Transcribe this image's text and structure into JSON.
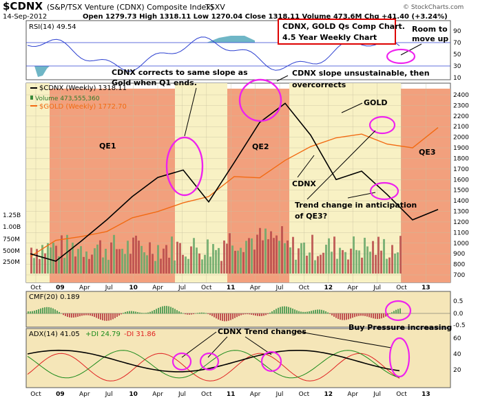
{
  "header": {
    "symbol": "$CDNX",
    "name": "(S&P/TSX Venture (CDNX) Composite Index)",
    "exchange": "TSXV",
    "date": "14-Sep-2012",
    "quote": "Open 1279.73   High 1318.11   Low 1270.04   Close 1318.11   Volume 473.6M   Chg +41.40 (+3.24%)",
    "watermark": "© StockCharts.com"
  },
  "annotations": {
    "title_box_line1": "CDNX, GOLD Qs Comp Chart.",
    "title_box_line2": "4.5 Year Weekly Chart",
    "room_line1": "Room to",
    "room_line2": "move up",
    "corrects_line1": "CDNX corrects to same slope as",
    "corrects_line2": "Gold when Q1 ends.",
    "unsustainable_line1": "CDNX slope unsustainable, then",
    "unsustainable_line2": "overcorrects",
    "gold": "GOLD",
    "cdnx": "CDNX",
    "trend_line1": "Trend change in anticipation",
    "trend_line2": "of QE3?",
    "qe1": "QE1",
    "qe2": "QE2",
    "qe3": "QE3",
    "buy_pressure": "Buy Pressure increasing",
    "trend_changes": "CDNX Trend changes"
  },
  "panels": {
    "rsi_label": "RSI(14) 49.54",
    "rsi_ticks": [
      "90",
      "70",
      "50",
      "30",
      "10"
    ],
    "main_legend": [
      "$CDNX (Weekly) 1318.11",
      "Volume 473,555,360",
      "$GOLD (Weekly) 1772.70"
    ],
    "price_ticks": [
      "2400",
      "2300",
      "2200",
      "2100",
      "2000",
      "1900",
      "1800",
      "1700",
      "1600",
      "1500",
      "1400",
      "1300",
      "1200",
      "1100",
      "1000",
      "900",
      "800",
      "700"
    ],
    "volume_ticks": [
      "1.25B",
      "1.00B",
      "750M",
      "500M",
      "250M"
    ],
    "cmf_label": "CMF(20) 0.189",
    "cmf_ticks": [
      "0.5",
      "0.0",
      "-0.5"
    ],
    "adx_label_black": "ADX(14) 41.05",
    "adx_label_green": "+DI 24.79",
    "adx_label_red": "-DI 31.86",
    "adx_ticks": [
      "60",
      "40",
      "20"
    ],
    "x_ticks": [
      "Oct",
      "09",
      "Apr",
      "Jul",
      "10",
      "Apr",
      "Jul",
      "Oct",
      "11",
      "Apr",
      "Jul",
      "Oct",
      "12",
      "Apr",
      "Jul",
      "Oct",
      "13"
    ]
  },
  "colors": {
    "qe": "#f2a07d",
    "between": "#f8f1c4",
    "cdnx": "#000000",
    "gold": "#f26a12",
    "rsi": "#2b3fd0",
    "ellipse": "#ee22ee",
    "box": "#dd0000",
    "plusdi": "#1a8a1a",
    "minusdi": "#e02020"
  },
  "chart_data": {
    "type": "line",
    "x": [
      "2008-10",
      "2009-01",
      "2009-04",
      "2009-07",
      "2009-10",
      "2010-01",
      "2010-04",
      "2010-07",
      "2010-10",
      "2011-01",
      "2011-04",
      "2011-07",
      "2011-10",
      "2012-01",
      "2012-04",
      "2012-07",
      "2012-09"
    ],
    "series": [
      {
        "name": "$CDNX (Weekly) 1318.11",
        "values": [
          900,
          830,
          1020,
          1220,
          1440,
          1620,
          1690,
          1390,
          1760,
          2140,
          2320,
          2020,
          1600,
          1680,
          1460,
          1220,
          1318
        ]
      },
      {
        "name": "$GOLD (Weekly) 1772.70",
        "values": [
          740,
          870,
          900,
          940,
          1050,
          1100,
          1170,
          1220,
          1380,
          1370,
          1510,
          1620,
          1690,
          1720,
          1640,
          1610,
          1772
        ]
      }
    ],
    "rsi_last": 49.54,
    "cmf_last": 0.189,
    "adx_last": 41.05,
    "plus_di_last": 24.79,
    "minus_di_last": 31.86,
    "volume_last": 473555360,
    "ylim": [
      700,
      2400
    ]
  }
}
